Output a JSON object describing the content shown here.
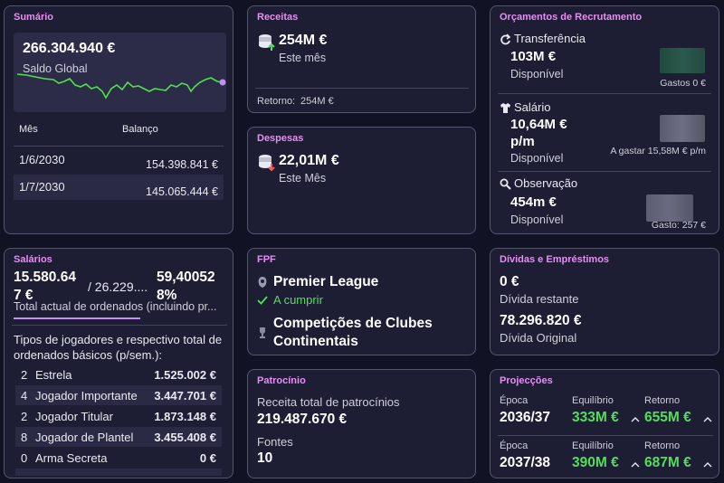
{
  "summary": {
    "title": "Sumário",
    "balance": "266.304.940 €",
    "balance_label": "Saldo Global",
    "col_month": "Mês",
    "col_balance": "Balanço",
    "rows": [
      {
        "month": "1/6/2030",
        "balance": "154.398.841 €"
      },
      {
        "month": "1/7/2030",
        "balance": "145.065.444 €"
      }
    ],
    "line_color": "#4fe04a"
  },
  "revenue": {
    "title": "Receitas",
    "amount": "254M €",
    "period": "Este mês",
    "return_label": "Retorno:",
    "return_value": "254M €"
  },
  "expenses": {
    "title": "Despesas",
    "amount": "22,01M €",
    "period": "Este Mês"
  },
  "recruitment": {
    "title": "Orçamentos de Recrutamento",
    "transfer": {
      "label": "Transferência",
      "amount": "103M €",
      "status": "Disponível",
      "note": "Gastos 0 €"
    },
    "salary": {
      "label": "Salário",
      "amount_line1": "10,64M €",
      "amount_line2": "p/m",
      "status": "Disponível",
      "note": "A gastar 15,58M € p/m"
    },
    "scouting": {
      "label": "Observação",
      "amount": "454m €",
      "status": "Disponível",
      "note": "Gasto: 257 €"
    }
  },
  "wages": {
    "title": "Salários",
    "current_line1": "15.580.64",
    "current_line2": "7 €",
    "separator": "/ 26.229....",
    "percent_line1": "59,40052",
    "percent_line2": "8%",
    "caption": "Total actual de ordenados (incluindo pr...",
    "types_heading": "Tipos de jogadores e respectivo total de ordenados básicos (p/sem.):",
    "rows": [
      {
        "count": "2",
        "label": "Estrela",
        "value": "1.525.002 €"
      },
      {
        "count": "4",
        "label": "Jogador Importante",
        "value": "3.447.701 €"
      },
      {
        "count": "2",
        "label": "Jogador Titular",
        "value": "1.873.148 €"
      },
      {
        "count": "8",
        "label": "Jogador de Plantel",
        "value": "3.455.408 €"
      },
      {
        "count": "0",
        "label": "Arma Secreta",
        "value": "0 €"
      }
    ]
  },
  "fpf": {
    "title": "FPF",
    "league": "Premier League",
    "status": "A cumprir",
    "comp_line1": "Competições de Clubes",
    "comp_line2": "Continentais"
  },
  "sponsorship": {
    "title": "Patrocínio",
    "total_label": "Receita total de patrocínios",
    "total_value": "219.487.670 €",
    "sources_label": "Fontes",
    "sources_value": "10"
  },
  "debts": {
    "title": "Dívidas e Empréstimos",
    "remaining_value": "0 €",
    "remaining_label": "Dívida restante",
    "original_value": "78.296.820 €",
    "original_label": "Dívida Original"
  },
  "projections": {
    "title": "Projecções",
    "col_season": "Época",
    "col_balance": "Equilíbrio",
    "col_return": "Retorno",
    "rows": [
      {
        "season": "2036/37",
        "balance": "333M €",
        "return": "655M €"
      },
      {
        "season": "2037/38",
        "balance": "390M €",
        "return": "687M €"
      }
    ]
  }
}
